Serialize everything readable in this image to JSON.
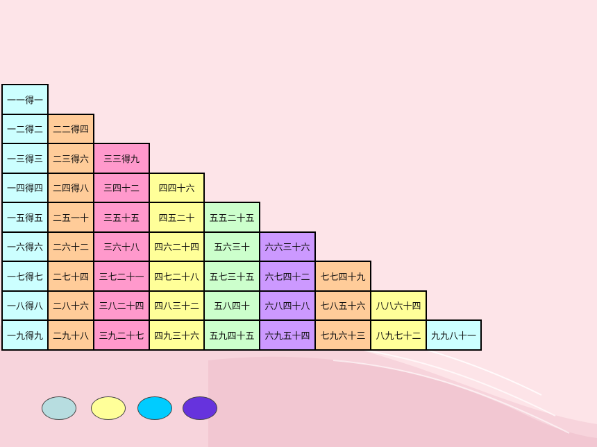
{
  "table": {
    "rows": [
      [
        "一一得一"
      ],
      [
        "一二得二",
        "二二得四"
      ],
      [
        "一三得三",
        "二三得六",
        "三三得九"
      ],
      [
        "一四得四",
        "二四得八",
        "三四十二",
        "四四十六"
      ],
      [
        "一五得五",
        "二五一十",
        "三五十五",
        "四五二十",
        "五五二十五"
      ],
      [
        "一六得六",
        "二六十二",
        "三六十八",
        "四六二十四",
        "五六三十",
        "六六三十六"
      ],
      [
        "一七得七",
        "二七十四",
        "三七二十一",
        "四七二十八",
        "五七三十五",
        "六七四十二",
        "七七四十九"
      ],
      [
        "一八得八",
        "二八十六",
        "三八二十四",
        "四八三十二",
        "五八四十",
        "六八四十八",
        "七八五十六",
        "八八六十四"
      ],
      [
        "一九得九",
        "二九十八",
        "三九二十七",
        "四九三十六",
        "五九四十五",
        "六九五十四",
        "七九六十三",
        "八九七十二",
        "九九八十一"
      ]
    ],
    "column_colors": [
      "#ccffff",
      "#ffcc99",
      "#ff99cc",
      "#ffff99",
      "#ccffcc",
      "#cc99ff",
      "#ffcc99",
      "#ffff99",
      "#ccffff"
    ]
  },
  "ovals": [
    {
      "name": "light-teal-oval",
      "color": "#b7dde0"
    },
    {
      "name": "yellow-oval",
      "color": "#ffff99"
    },
    {
      "name": "cyan-oval",
      "color": "#00ccff"
    },
    {
      "name": "purple-oval",
      "color": "#6633dd"
    }
  ]
}
